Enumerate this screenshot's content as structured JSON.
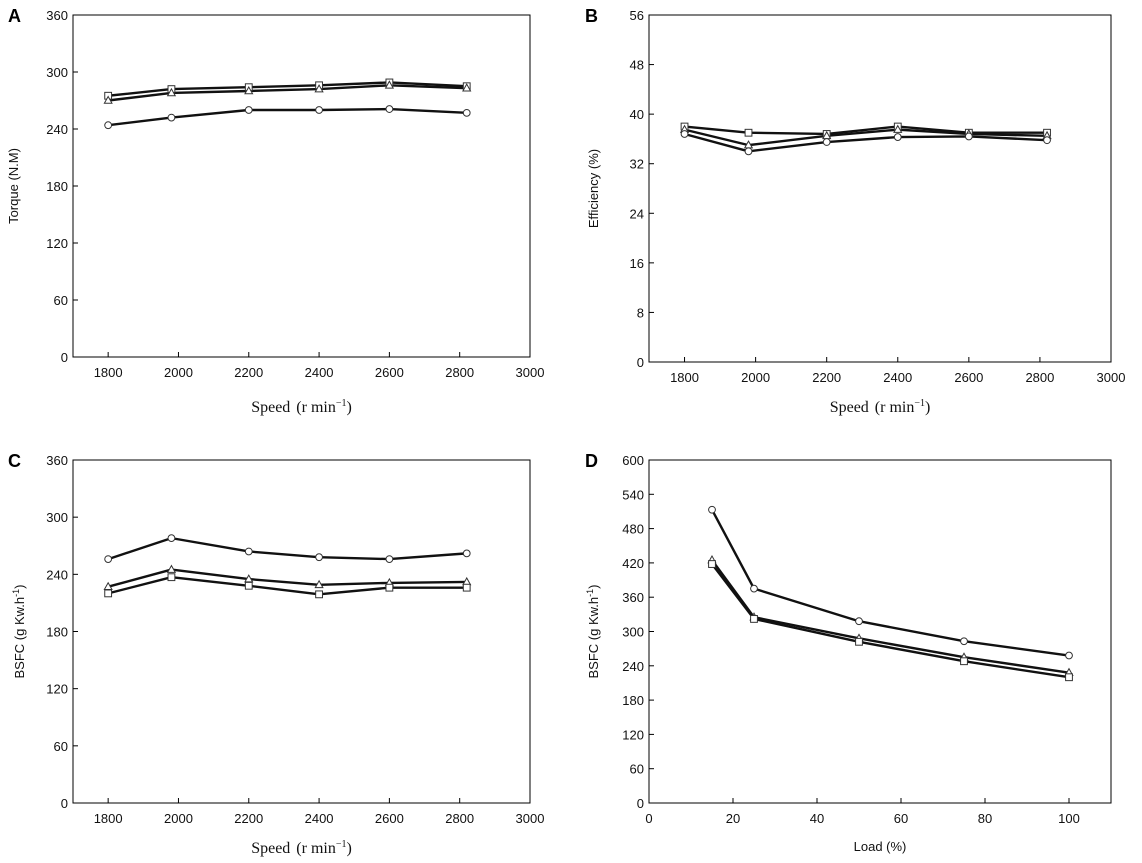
{
  "chart_data": [
    {
      "panel": "A",
      "type": "line",
      "xlabel": "Speed",
      "xlabel_unit": "(r min",
      "xlabel_sup": "−1",
      "xlabel_close": ")",
      "ylabel": "Torque (N.M)",
      "xlim": [
        1700,
        3000
      ],
      "ylim": [
        0,
        360
      ],
      "xticks": [
        1800,
        2000,
        2200,
        2400,
        2600,
        2800,
        3000
      ],
      "yticks": [
        0,
        60,
        120,
        180,
        240,
        300,
        360
      ],
      "x": [
        1800,
        1980,
        2200,
        2400,
        2600,
        2820
      ],
      "series": [
        {
          "name": "square",
          "marker": "square",
          "values": [
            275,
            282,
            284,
            286,
            289,
            285
          ]
        },
        {
          "name": "triangle",
          "marker": "triangle",
          "values": [
            270,
            278,
            280,
            282,
            286,
            283
          ]
        },
        {
          "name": "circle",
          "marker": "circle",
          "values": [
            244,
            252,
            260,
            260,
            261,
            257
          ]
        }
      ]
    },
    {
      "panel": "B",
      "type": "line",
      "xlabel": "Speed",
      "xlabel_unit": "(r min",
      "xlabel_sup": "−1",
      "xlabel_close": ")",
      "ylabel": "Efficiency (%)",
      "xlim": [
        1700,
        3000
      ],
      "ylim": [
        0,
        56
      ],
      "xticks": [
        1800,
        2000,
        2200,
        2400,
        2600,
        2800,
        3000
      ],
      "yticks": [
        0,
        8,
        16,
        24,
        32,
        40,
        48,
        56
      ],
      "x": [
        1800,
        1980,
        2200,
        2400,
        2600,
        2820
      ],
      "series": [
        {
          "name": "square",
          "marker": "square",
          "values": [
            38.0,
            37.0,
            36.8,
            38.0,
            37.0,
            37.0
          ]
        },
        {
          "name": "triangle",
          "marker": "triangle",
          "values": [
            37.5,
            35.0,
            36.5,
            37.5,
            36.8,
            36.5
          ]
        },
        {
          "name": "circle",
          "marker": "circle",
          "values": [
            36.8,
            34.0,
            35.5,
            36.3,
            36.4,
            35.8
          ]
        }
      ]
    },
    {
      "panel": "C",
      "type": "line",
      "xlabel": "Speed",
      "xlabel_unit": "(r min",
      "xlabel_sup": "−1",
      "xlabel_close": ")",
      "ylabel": "BSFC (g Kw.h",
      "ylabel_sup": "-1",
      "ylabel_close": ")",
      "xlim": [
        1700,
        3000
      ],
      "ylim": [
        0,
        360
      ],
      "xticks": [
        1800,
        2000,
        2200,
        2400,
        2600,
        2800,
        3000
      ],
      "yticks": [
        0,
        60,
        120,
        180,
        240,
        300,
        360
      ],
      "x": [
        1800,
        1980,
        2200,
        2400,
        2600,
        2820
      ],
      "series": [
        {
          "name": "circle",
          "marker": "circle",
          "values": [
            256,
            278,
            264,
            258,
            256,
            262
          ]
        },
        {
          "name": "triangle",
          "marker": "triangle",
          "values": [
            227,
            245,
            235,
            229,
            231,
            232
          ]
        },
        {
          "name": "square",
          "marker": "square",
          "values": [
            220,
            237,
            228,
            219,
            226,
            226
          ]
        }
      ]
    },
    {
      "panel": "D",
      "type": "line",
      "xlabel": "Load (%)",
      "ylabel": "BSFC (g Kw.h",
      "ylabel_sup": "-1",
      "ylabel_close": ")",
      "xlim": [
        0,
        110
      ],
      "ylim": [
        0,
        600
      ],
      "xticks": [
        0,
        20,
        40,
        60,
        80,
        100
      ],
      "yticks": [
        0,
        60,
        120,
        180,
        240,
        300,
        360,
        420,
        480,
        540,
        600
      ],
      "x": [
        15,
        25,
        50,
        75,
        100
      ],
      "series": [
        {
          "name": "circle",
          "marker": "circle",
          "values": [
            513,
            375,
            318,
            283,
            258
          ]
        },
        {
          "name": "triangle",
          "marker": "triangle",
          "values": [
            425,
            325,
            288,
            255,
            228
          ]
        },
        {
          "name": "square",
          "marker": "square",
          "values": [
            418,
            322,
            282,
            248,
            220
          ]
        }
      ]
    }
  ]
}
